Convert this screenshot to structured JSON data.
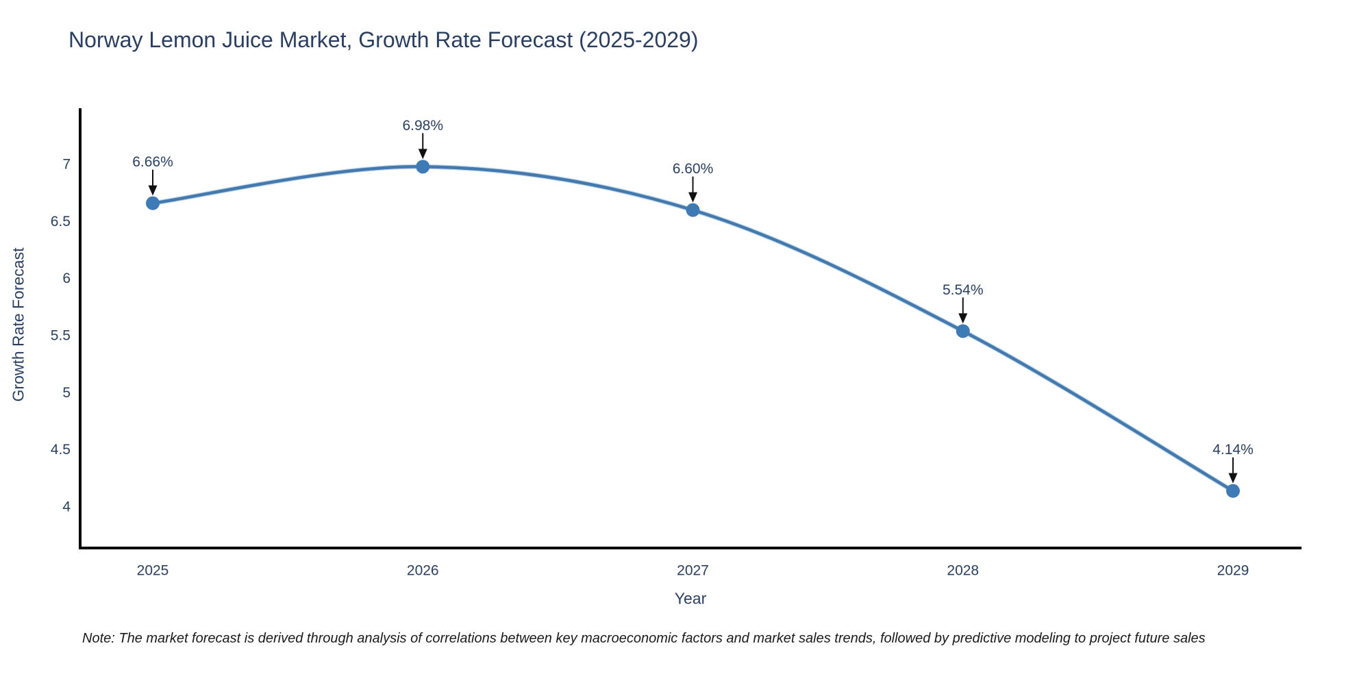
{
  "chart_data": {
    "type": "line",
    "title": "Norway Lemon Juice Market, Growth Rate Forecast (2025-2029)",
    "xlabel": "Year",
    "ylabel": "Growth Rate Forecast",
    "categories": [
      "2025",
      "2026",
      "2027",
      "2028",
      "2029"
    ],
    "series": [
      {
        "name": "Growth Rate Forecast",
        "values": [
          6.66,
          6.98,
          6.6,
          5.54,
          4.14
        ],
        "unit": "%"
      }
    ],
    "point_labels": [
      "6.66%",
      "6.98%",
      "6.60%",
      "5.54%",
      "4.14%"
    ],
    "y_axis": {
      "ticks": [
        4,
        4.5,
        5,
        5.5,
        6,
        6.5,
        7
      ],
      "range": [
        3.6,
        7.5
      ]
    },
    "x_axis": {
      "ticks": [
        "2025",
        "2026",
        "2027",
        "2028",
        "2029"
      ]
    },
    "line_shape": "spline",
    "grid": false,
    "legend": "none",
    "colors": {
      "line": "#4479ad",
      "line_halo": "#7fafd6",
      "marker": "#3e7bb6",
      "axis": "#000000",
      "text": "#2a3f5f",
      "annotation_arrow": "#111111"
    },
    "note": "Note: The market forecast is derived through analysis of correlations between key macroeconomic factors and market sales trends, followed by predictive modeling to project future sales"
  }
}
